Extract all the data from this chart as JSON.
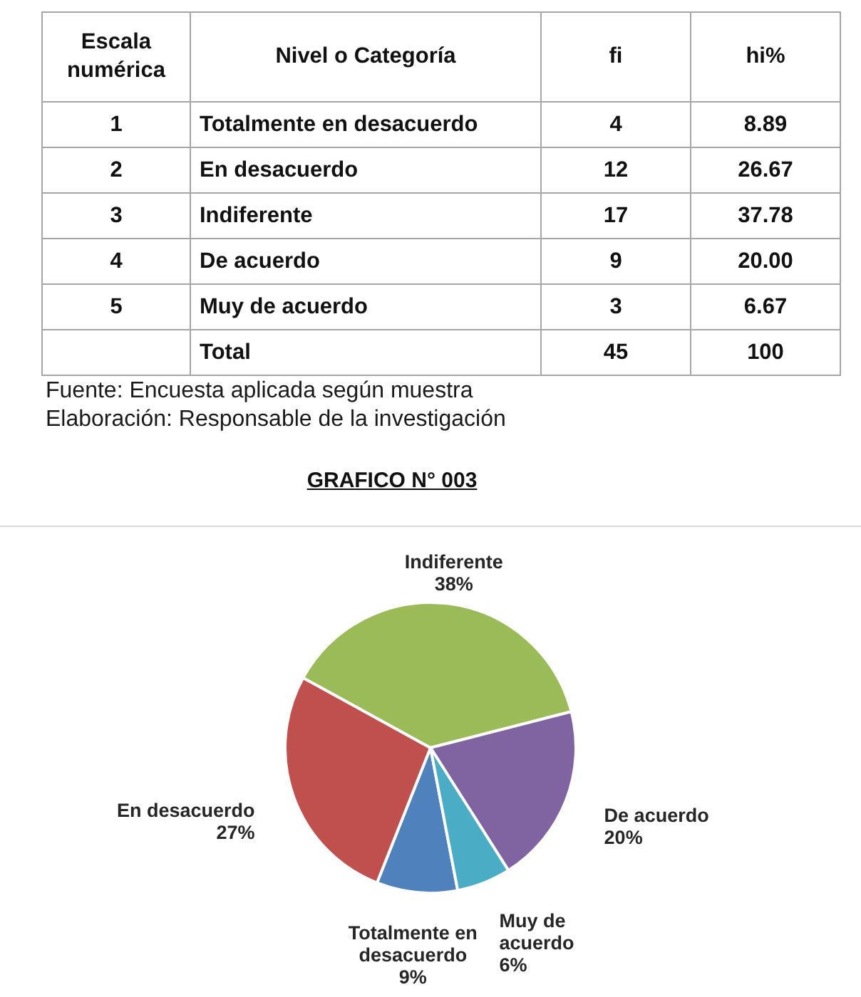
{
  "chart_data": [
    {
      "type": "heatmap",
      "ylabel": "Nivel o Categoría",
      "y2label": "Escala numérica",
      "categories": [
        "fi",
        "hi%"
      ],
      "y_categories": [
        "Totalmente en desacuerdo",
        "En desacuerdo",
        "Indiferente",
        "De acuerdo",
        "Muy de acuerdo",
        "Total"
      ],
      "y2_categories": [
        "1",
        "2",
        "3",
        "4",
        "5",
        null
      ],
      "cells": [
        [
          null,
          null
        ],
        [
          null,
          null
        ],
        [
          null,
          null
        ],
        [
          null,
          null
        ],
        [
          null,
          null
        ],
        [
          null,
          null
        ]
      ],
      "cell_labels": [
        [
          "4",
          "8.89"
        ],
        [
          "12",
          "26.67"
        ],
        [
          "17",
          "37.78"
        ],
        [
          "9",
          "20.00"
        ],
        [
          "3",
          "6.67"
        ],
        [
          "45",
          "100"
        ]
      ],
      "annotations": [
        "Fuente: Encuesta aplicada según muestra",
        "Elaboración: Responsable de la investigación"
      ]
    },
    {
      "type": "pie",
      "title": "GRAFICO N° 003",
      "categories": [
        "Totalmente en desacuerdo",
        "En desacuerdo",
        "Indiferente",
        "De acuerdo",
        "Muy de acuerdo"
      ],
      "values": [
        9,
        27,
        38,
        20,
        6
      ],
      "colors": [
        "#4f81bd",
        "#c0504d",
        "#9bbb59",
        "#8064a2",
        "#4bacc6"
      ],
      "value_labels": [
        "9%",
        "27%",
        "38%",
        "20%",
        "6%"
      ]
    }
  ]
}
